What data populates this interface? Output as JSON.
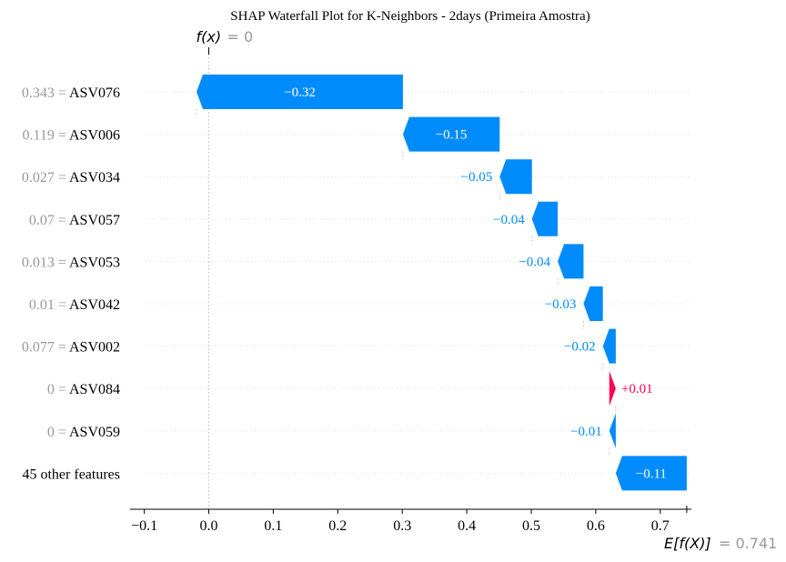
{
  "chart_data": {
    "type": "waterfall",
    "title": "SHAP Waterfall Plot for K-Neighbors - 2days (Primeira Amostra)",
    "fx_label": "f(x)",
    "fx_value_text": "= 0",
    "ex_label": "E[f(X)]",
    "ex_value_text": "= 0.741",
    "base_value": 0.741,
    "final_value": 0,
    "xlim": [
      -0.12,
      0.74
    ],
    "xticks": [
      -0.1,
      0.0,
      0.1,
      0.2,
      0.3,
      0.4,
      0.5,
      0.6,
      0.7
    ],
    "xtick_labels": [
      "−0.1",
      "0.0",
      "0.1",
      "0.2",
      "0.3",
      "0.4",
      "0.5",
      "0.6",
      "0.7"
    ],
    "features": [
      {
        "value_text": "0.343",
        "name": "ASV076",
        "shap": -0.32,
        "label": "−0.32"
      },
      {
        "value_text": "0.119",
        "name": "ASV006",
        "shap": -0.15,
        "label": "−0.15"
      },
      {
        "value_text": "0.027",
        "name": "ASV034",
        "shap": -0.05,
        "label": "−0.05"
      },
      {
        "value_text": "0.07",
        "name": "ASV057",
        "shap": -0.04,
        "label": "−0.04"
      },
      {
        "value_text": "0.013",
        "name": "ASV053",
        "shap": -0.04,
        "label": "−0.04"
      },
      {
        "value_text": "0.01",
        "name": "ASV042",
        "shap": -0.03,
        "label": "−0.03"
      },
      {
        "value_text": "0.077",
        "name": "ASV002",
        "shap": -0.02,
        "label": "−0.02"
      },
      {
        "value_text": "0",
        "name": "ASV084",
        "shap": 0.01,
        "label": "+0.01"
      },
      {
        "value_text": "0",
        "name": "ASV059",
        "shap": -0.01,
        "label": "−0.01"
      },
      {
        "value_text": "",
        "name": "45 other features",
        "shap": -0.11,
        "label": "−0.11"
      }
    ],
    "colors": {
      "negative": "#008bfb",
      "positive": "#ff0051",
      "value_gray": "#999999",
      "text": "#000000"
    }
  }
}
